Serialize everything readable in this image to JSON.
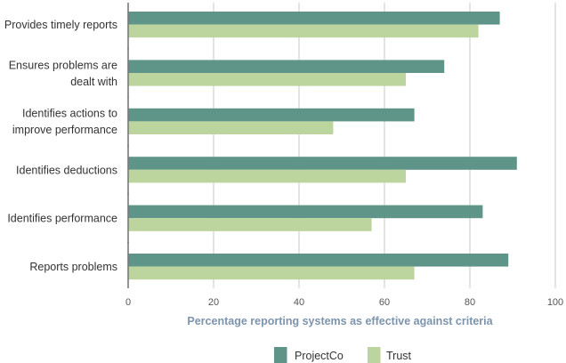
{
  "chart_data": {
    "type": "bar",
    "orientation": "horizontal",
    "title": "",
    "xlabel": "Percentage reporting systems as effective against criteria",
    "ylabel": "",
    "xlim": [
      0,
      100
    ],
    "xticks": [
      0,
      20,
      40,
      60,
      80,
      100
    ],
    "grid": true,
    "legend_position": "bottom-center",
    "categories": [
      [
        "Provides timely reports"
      ],
      [
        "Ensures problems are",
        "dealt with"
      ],
      [
        "Identifies actions to",
        "improve performance"
      ],
      [
        "Identifies deductions"
      ],
      [
        "Identifies performance"
      ],
      [
        "Reports problems"
      ]
    ],
    "series": [
      {
        "name": "ProjectCo",
        "color": "#5f9488",
        "values": [
          87,
          74,
          67,
          91,
          83,
          89
        ]
      },
      {
        "name": "Trust",
        "color": "#bcd49e",
        "values": [
          82,
          65,
          48,
          65,
          57,
          67
        ]
      }
    ]
  },
  "colors": {
    "axis": "#7a7a7a",
    "grid": "#d6d6d6",
    "axis_title": "#7d94ad"
  }
}
